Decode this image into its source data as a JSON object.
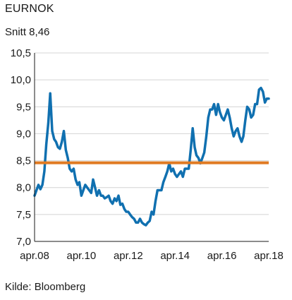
{
  "title": "EURNOK",
  "subtitle": "Snitt 8,46",
  "source": "Kilde: Bloomberg",
  "colors": {
    "series": "#1070b0",
    "average": "#e07a22",
    "grid": "#d4d4d4",
    "axis": "#1a1a1a"
  },
  "chart_data": {
    "type": "line",
    "title": "EURNOK",
    "subtitle": "Snitt 8,46",
    "xlabel": "",
    "ylabel": "",
    "ylim": [
      7.0,
      10.5
    ],
    "xlim": [
      "2008-04-01",
      "2018-04-01"
    ],
    "grid": "horizontal",
    "y_ticks": [
      {
        "value": 7.0,
        "label": "7,0"
      },
      {
        "value": 7.5,
        "label": "7,5"
      },
      {
        "value": 8.0,
        "label": "8,0"
      },
      {
        "value": 8.5,
        "label": "8,5"
      },
      {
        "value": 9.0,
        "label": "9,0"
      },
      {
        "value": 9.5,
        "label": "9,5"
      },
      {
        "value": 10.0,
        "label": "10,0"
      },
      {
        "value": 10.5,
        "label": "10,5"
      }
    ],
    "x_ticks": [
      {
        "date": "2008-04-01",
        "label": "apr.08"
      },
      {
        "date": "2010-04-01",
        "label": "apr.10"
      },
      {
        "date": "2012-04-01",
        "label": "apr.12"
      },
      {
        "date": "2014-04-01",
        "label": "apr.14"
      },
      {
        "date": "2016-04-01",
        "label": "apr.16"
      },
      {
        "date": "2018-04-01",
        "label": "apr.18"
      }
    ],
    "reference_line": {
      "value": 8.46
    },
    "series": [
      {
        "x": [
          "2008-04-01",
          "2008-05-01",
          "2008-06-01",
          "2008-07-01",
          "2008-08-01",
          "2008-09-01",
          "2008-10-01",
          "2008-11-01",
          "2008-12-01",
          "2009-01-01",
          "2009-02-01",
          "2009-03-01",
          "2009-04-01",
          "2009-05-01",
          "2009-06-01",
          "2009-07-01",
          "2009-08-01",
          "2009-09-01",
          "2009-10-01",
          "2009-11-01",
          "2009-12-01",
          "2010-01-01",
          "2010-02-01",
          "2010-03-01",
          "2010-04-01",
          "2010-05-01",
          "2010-06-01",
          "2010-07-01",
          "2010-08-01",
          "2010-09-01",
          "2010-10-01",
          "2010-11-01",
          "2010-12-01",
          "2011-01-01",
          "2011-02-01",
          "2011-03-01",
          "2011-04-01",
          "2011-05-01",
          "2011-06-01",
          "2011-07-01",
          "2011-08-01",
          "2011-09-01",
          "2011-10-01",
          "2011-11-01",
          "2011-12-01",
          "2012-01-01",
          "2012-02-01",
          "2012-03-01",
          "2012-04-01",
          "2012-05-01",
          "2012-06-01",
          "2012-07-01",
          "2012-08-01",
          "2012-09-01",
          "2012-10-01",
          "2012-11-01",
          "2012-12-01",
          "2013-01-01",
          "2013-02-01",
          "2013-03-01",
          "2013-04-01",
          "2013-05-01",
          "2013-06-01",
          "2013-07-01",
          "2013-08-01",
          "2013-09-01",
          "2013-10-01",
          "2013-11-01",
          "2013-12-01",
          "2014-01-01",
          "2014-02-01",
          "2014-03-01",
          "2014-04-01",
          "2014-05-01",
          "2014-06-01",
          "2014-07-01",
          "2014-08-01",
          "2014-09-01",
          "2014-10-01",
          "2014-11-01",
          "2014-12-01",
          "2015-01-01",
          "2015-02-01",
          "2015-03-01",
          "2015-04-01",
          "2015-05-01",
          "2015-06-01",
          "2015-07-01",
          "2015-08-01",
          "2015-09-01",
          "2015-10-01",
          "2015-11-01",
          "2015-12-01",
          "2016-01-01",
          "2016-02-01",
          "2016-03-01",
          "2016-04-01",
          "2016-05-01",
          "2016-06-01",
          "2016-07-01",
          "2016-08-01",
          "2016-09-01",
          "2016-10-01",
          "2016-11-01",
          "2016-12-01",
          "2017-01-01",
          "2017-02-01",
          "2017-03-01",
          "2017-04-01",
          "2017-05-01",
          "2017-06-01",
          "2017-07-01",
          "2017-08-01",
          "2017-09-01",
          "2017-10-01",
          "2017-11-01",
          "2017-12-01",
          "2018-01-01",
          "2018-02-01",
          "2018-03-01",
          "2018-04-01"
        ],
        "values": [
          7.85,
          7.95,
          8.05,
          7.97,
          8.05,
          8.3,
          8.8,
          9.2,
          9.75,
          9.05,
          8.9,
          8.85,
          8.75,
          8.72,
          8.85,
          9.05,
          8.7,
          8.55,
          8.35,
          8.3,
          8.35,
          8.15,
          8.05,
          8.1,
          7.85,
          7.95,
          8.05,
          8.0,
          7.95,
          7.9,
          8.15,
          8.0,
          7.85,
          7.95,
          7.85,
          7.85,
          7.8,
          7.82,
          7.85,
          7.75,
          7.7,
          7.8,
          7.75,
          7.85,
          7.68,
          7.7,
          7.6,
          7.55,
          7.55,
          7.5,
          7.45,
          7.42,
          7.35,
          7.35,
          7.42,
          7.35,
          7.32,
          7.3,
          7.35,
          7.38,
          7.55,
          7.5,
          7.75,
          7.95,
          7.95,
          7.95,
          8.1,
          8.2,
          8.3,
          8.45,
          8.3,
          8.35,
          8.25,
          8.2,
          8.25,
          8.3,
          8.2,
          8.35,
          8.35,
          8.35,
          8.7,
          9.1,
          8.75,
          8.6,
          8.55,
          8.45,
          8.55,
          8.65,
          8.95,
          9.3,
          9.45,
          9.45,
          9.55,
          9.35,
          9.55,
          9.4,
          9.3,
          9.25,
          9.35,
          9.45,
          9.3,
          9.1,
          8.95,
          9.05,
          9.1,
          8.95,
          8.85,
          8.95,
          9.25,
          9.5,
          9.45,
          9.3,
          9.35,
          9.55,
          9.55,
          9.82,
          9.85,
          9.78,
          9.58,
          9.65,
          9.65
        ]
      }
    ]
  }
}
